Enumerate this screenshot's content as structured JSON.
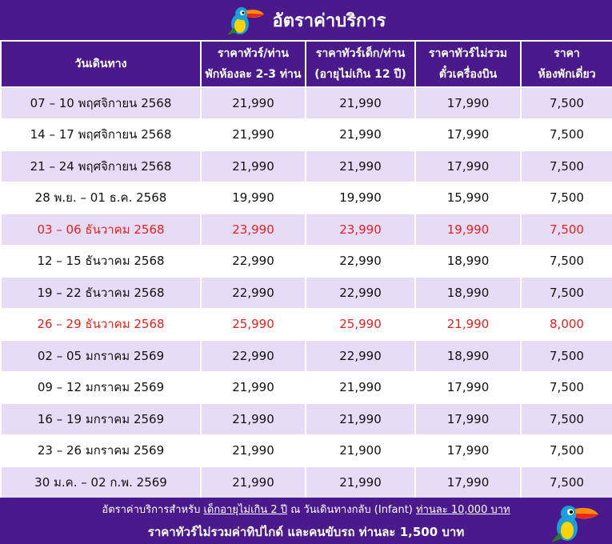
{
  "title": "อัตราค่าบริการ",
  "headers": [
    {
      "line1": "วันเดินทาง",
      "line2": ""
    },
    {
      "line1": "ราคาทัวร์/ท่าน",
      "line2": "พักห้องละ 2-3 ท่าน"
    },
    {
      "line1": "ราคาทัวร์เด็ก/ท่าน",
      "line2": "(อายุไม่เกิน 12 ปี)"
    },
    {
      "line1": "ราคาทัวร์ไม่รวม",
      "line2": "ตั๋วเครื่องบิน"
    },
    {
      "line1": "ราคา",
      "line2": "ห้องพักเดี่ยว"
    }
  ],
  "rows": [
    {
      "date": "07 – 10 พฤศจิกายน 2568",
      "adult": "21,990",
      "child": "21,990",
      "no_ticket": "17,990",
      "single": "7,500",
      "highlight": false
    },
    {
      "date": "14 – 17 พฤศจิกายน 2568",
      "adult": "21,990",
      "child": "21,990",
      "no_ticket": "17,990",
      "single": "7,500",
      "highlight": false
    },
    {
      "date": "21 – 24 พฤศจิกายน 2568",
      "adult": "21,990",
      "child": "21,990",
      "no_ticket": "17,990",
      "single": "7,500",
      "highlight": false
    },
    {
      "date": "28 พ.ย. – 01 ธ.ค. 2568",
      "adult": "19,990",
      "child": "19,990",
      "no_ticket": "15,990",
      "single": "7,500",
      "highlight": false
    },
    {
      "date": "03 – 06 ธันวาคม 2568",
      "adult": "23,990",
      "child": "23,990",
      "no_ticket": "19,990",
      "single": "7,500",
      "highlight": true
    },
    {
      "date": "12 – 15 ธันวาคม 2568",
      "adult": "22,990",
      "child": "22,990",
      "no_ticket": "18,990",
      "single": "7,500",
      "highlight": false
    },
    {
      "date": "19 – 22 ธันวาคม 2568",
      "adult": "22,990",
      "child": "22,990",
      "no_ticket": "18,990",
      "single": "7,500",
      "highlight": false
    },
    {
      "date": "26 – 29 ธันวาคม 2568",
      "adult": "25,990",
      "child": "25,990",
      "no_ticket": "21,990",
      "single": "8,000",
      "highlight": true
    },
    {
      "date": "02 – 05 มกราคม 2569",
      "adult": "22,990",
      "child": "22,990",
      "no_ticket": "18,990",
      "single": "7,500",
      "highlight": false
    },
    {
      "date": "09 – 12 มกราคม 2569",
      "adult": "21,990",
      "child": "21,990",
      "no_ticket": "17,990",
      "single": "7,500",
      "highlight": false
    },
    {
      "date": "16 – 19 มกราคม 2569",
      "adult": "21,990",
      "child": "21,990",
      "no_ticket": "17,990",
      "single": "7,500",
      "highlight": false
    },
    {
      "date": "23 – 26 มกราคม 2569",
      "adult": "21,990",
      "child": "21,900",
      "no_ticket": "17,990",
      "single": "7,500",
      "highlight": false
    },
    {
      "date": "30 ม.ค. – 02 ก.พ. 2569",
      "adult": "21,990",
      "child": "21,990",
      "no_ticket": "17,990",
      "single": "7,500",
      "highlight": false
    }
  ],
  "footer": {
    "line1_a": "อัตราค่าบริการสำหรับ ",
    "line1_b": "เด็กอายุไม่เกิน 2 ปี",
    "line1_c": " ณ วันเดินทางกลับ (Infant) ",
    "line1_d": "ท่านละ 10,000 บาท",
    "line2": "ราคาทัวร์ไม่รวมค่าทิปไกด์ และคนขับรถ ท่านละ 1,500 บาท"
  },
  "colors": {
    "header_bg": "#4a1a8c",
    "row_alt": "#e6dcf6",
    "highlight_text": "#e8201e"
  },
  "icons": {
    "title_logo": "toucan-icon",
    "footer_logo": "toucan-icon"
  }
}
